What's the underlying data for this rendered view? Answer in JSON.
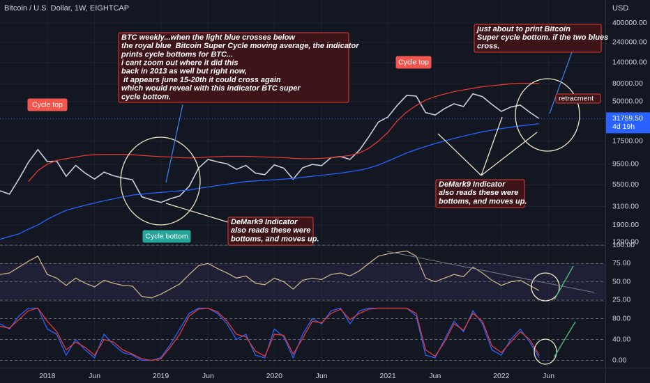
{
  "chart_data": [
    {
      "type": "line",
      "title": "Bitcoin / U.S. Dollar, 1W, EIGHTCAP",
      "y_axis_label": "USD",
      "log_scale": true,
      "grid": true,
      "x": [
        "2017-08",
        "2017-09",
        "2017-10",
        "2017-11",
        "2017-12",
        "2018-01",
        "2018-02",
        "2018-03",
        "2018-04",
        "2018-05",
        "2018-06",
        "2018-07",
        "2018-08",
        "2018-09",
        "2018-10",
        "2018-11",
        "2018-12",
        "2019-01",
        "2019-02",
        "2019-03",
        "2019-04",
        "2019-05",
        "2019-06",
        "2019-07",
        "2019-08",
        "2019-09",
        "2019-10",
        "2019-11",
        "2019-12",
        "2020-01",
        "2020-02",
        "2020-03",
        "2020-04",
        "2020-05",
        "2020-06",
        "2020-07",
        "2020-08",
        "2020-09",
        "2020-10",
        "2020-11",
        "2020-12",
        "2021-01",
        "2021-02",
        "2021-03",
        "2021-04",
        "2021-05",
        "2021-06",
        "2021-07",
        "2021-08",
        "2021-09",
        "2021-10",
        "2021-11",
        "2021-12",
        "2022-01",
        "2022-02",
        "2022-03",
        "2022-04",
        "2022-05"
      ],
      "series": [
        {
          "color": "#c9d1dd",
          "values": [
            4700,
            4300,
            6400,
            10000,
            14000,
            10200,
            10300,
            6900,
            9200,
            7500,
            6400,
            7700,
            7000,
            6600,
            6300,
            4000,
            3700,
            3450,
            3800,
            4100,
            5300,
            8600,
            10800,
            10100,
            9600,
            8300,
            9200,
            7500,
            7200,
            9350,
            8550,
            6400,
            8650,
            9450,
            9150,
            11300,
            11650,
            10800,
            13800,
            19700,
            29000,
            33100,
            45200,
            58800,
            57700,
            37300,
            35000,
            41500,
            47100,
            43800,
            61300,
            57000,
            46300,
            38500,
            43200,
            45500,
            37700,
            31760
          ]
        },
        {
          "color": "#e53935",
          "values": [
            null,
            null,
            null,
            6000,
            8000,
            9500,
            10500,
            11000,
            11500,
            12000,
            12200,
            12300,
            12300,
            12300,
            12200,
            12000,
            11800,
            11600,
            11500,
            11300,
            11200,
            11300,
            11500,
            11600,
            11700,
            11700,
            11700,
            11600,
            11500,
            11400,
            11300,
            11100,
            11000,
            11000,
            11100,
            11300,
            11600,
            12000,
            12800,
            14500,
            17500,
            22000,
            30000,
            38000,
            45000,
            52000,
            57000,
            61000,
            65000,
            68000,
            71000,
            74000,
            76000,
            78000,
            80000,
            81000,
            81000,
            80000
          ]
        },
        {
          "color": "#2962ff",
          "values": [
            1300,
            1400,
            1500,
            1700,
            1900,
            2200,
            2500,
            2800,
            3000,
            3200,
            3400,
            3600,
            3800,
            4000,
            4200,
            4300,
            4400,
            4500,
            4600,
            4700,
            4800,
            5000,
            5200,
            5400,
            5600,
            5800,
            6000,
            6100,
            6200,
            6300,
            6400,
            6500,
            6700,
            6900,
            7100,
            7300,
            7500,
            7800,
            8100,
            8600,
            9300,
            10300,
            11500,
            12800,
            14000,
            15200,
            16400,
            17600,
            18800,
            20000,
            21200,
            22400,
            23400,
            24400,
            25300,
            26200,
            27000,
            27800
          ]
        }
      ],
      "xlim": [
        "2017-08",
        "2022-12"
      ],
      "xticks": [
        {
          "value": "2018-01",
          "label": "2018"
        },
        {
          "value": "2018-06",
          "label": "Jun"
        },
        {
          "value": "2019-01",
          "label": "2019"
        },
        {
          "value": "2019-06",
          "label": "Jun"
        },
        {
          "value": "2020-01",
          "label": "2020"
        },
        {
          "value": "2020-06",
          "label": "Jun"
        },
        {
          "value": "2021-01",
          "label": "2021"
        },
        {
          "value": "2021-06",
          "label": "Jun"
        },
        {
          "value": "2022-01",
          "label": "2022"
        },
        {
          "value": "2022-06",
          "label": "Jun"
        }
      ],
      "ylim": [
        1114,
        736000
      ],
      "yticks": [
        {
          "value": 1200,
          "label": "1200.00"
        },
        {
          "value": 1900,
          "label": "1900.00"
        },
        {
          "value": 3100,
          "label": "3100.00"
        },
        {
          "value": 5500,
          "label": "5500.00"
        },
        {
          "value": 9500,
          "label": "9500.00"
        },
        {
          "value": 17500,
          "label": "17500.00"
        },
        {
          "value": 50000,
          "label": "50000.00"
        },
        {
          "value": 80000,
          "label": "80000.00"
        },
        {
          "value": 140000,
          "label": "140000.00"
        },
        {
          "value": 240000,
          "label": "240000.00"
        },
        {
          "value": 400000,
          "label": "400000.00"
        }
      ],
      "last_price": {
        "value": 31759.5,
        "label": "31759.50"
      },
      "countdown": "4d 19h",
      "annotations": [
        {
          "text": "Cycle top"
        },
        {
          "text": "Cycle top"
        },
        {
          "text": "Cycle bottom"
        },
        {
          "lines": [
            "BTC weekly...when the light blue crosses below",
            "the royal blue  Bitcoin Super Cycle moving average, the indicator",
            "prints cycle bottoms for BTC...",
            "i cant zoom out where it did this",
            "back in 2013 as well but right now,",
            " it appears june 15-20th it could cross again",
            "which would reveal with this indicator BTC super",
            "cycle bottom."
          ]
        },
        {
          "lines": [
            "DeMark9 Indicator",
            "also reads these were",
            "bottoms, and moves up."
          ]
        },
        {
          "lines": [
            "DeMark9 Indicator",
            "also reads these were",
            "bottoms, and moves up."
          ]
        },
        {
          "lines": [
            "just about to print Bitcoin",
            "Super cycle bottom. if the two blues",
            "cross."
          ]
        },
        {
          "text": "retracment"
        }
      ]
    },
    {
      "type": "line",
      "x": [
        "2017-08",
        "2017-09",
        "2017-10",
        "2017-11",
        "2017-12",
        "2018-01",
        "2018-02",
        "2018-03",
        "2018-04",
        "2018-05",
        "2018-06",
        "2018-07",
        "2018-08",
        "2018-09",
        "2018-10",
        "2018-11",
        "2018-12",
        "2019-01",
        "2019-02",
        "2019-03",
        "2019-04",
        "2019-05",
        "2019-06",
        "2019-07",
        "2019-08",
        "2019-09",
        "2019-10",
        "2019-11",
        "2019-12",
        "2020-01",
        "2020-02",
        "2020-03",
        "2020-04",
        "2020-05",
        "2020-06",
        "2020-07",
        "2020-08",
        "2020-09",
        "2020-10",
        "2020-11",
        "2020-12",
        "2021-01",
        "2021-02",
        "2021-03",
        "2021-04",
        "2021-05",
        "2021-06",
        "2021-07",
        "2021-08",
        "2021-09",
        "2021-10",
        "2021-11",
        "2021-12",
        "2022-01",
        "2022-02",
        "2022-03",
        "2022-04",
        "2022-05"
      ],
      "series": [
        {
          "color": "#c9b28a",
          "values": [
            60,
            62,
            70,
            78,
            85,
            60,
            55,
            45,
            55,
            48,
            43,
            52,
            48,
            45,
            44,
            30,
            28,
            33,
            40,
            47,
            60,
            72,
            75,
            68,
            62,
            55,
            58,
            48,
            46,
            55,
            50,
            40,
            52,
            55,
            53,
            60,
            62,
            58,
            65,
            75,
            85,
            88,
            90,
            92,
            85,
            55,
            50,
            55,
            60,
            57,
            70,
            62,
            52,
            45,
            50,
            52,
            45,
            38
          ]
        }
      ],
      "ylim": [
        24,
        100
      ],
      "yticks": [
        {
          "value": 25,
          "label": "25.00"
        },
        {
          "value": 50,
          "label": "50.00"
        },
        {
          "value": 75,
          "label": "75.00"
        },
        {
          "value": 100,
          "label": "100.00"
        }
      ]
    },
    {
      "type": "line",
      "x": [
        "2017-08",
        "2017-09",
        "2017-10",
        "2017-11",
        "2017-12",
        "2018-01",
        "2018-02",
        "2018-03",
        "2018-04",
        "2018-05",
        "2018-06",
        "2018-07",
        "2018-08",
        "2018-09",
        "2018-10",
        "2018-11",
        "2018-12",
        "2019-01",
        "2019-02",
        "2019-03",
        "2019-04",
        "2019-05",
        "2019-06",
        "2019-07",
        "2019-08",
        "2019-09",
        "2019-10",
        "2019-11",
        "2019-12",
        "2020-01",
        "2020-02",
        "2020-03",
        "2020-04",
        "2020-05",
        "2020-06",
        "2020-07",
        "2020-08",
        "2020-09",
        "2020-10",
        "2020-11",
        "2020-12",
        "2021-01",
        "2021-02",
        "2021-03",
        "2021-04",
        "2021-05",
        "2021-06",
        "2021-07",
        "2021-08",
        "2021-09",
        "2021-10",
        "2021-11",
        "2021-12",
        "2022-01",
        "2022-02",
        "2022-03",
        "2022-04",
        "2022-05"
      ],
      "series": [
        {
          "color": "#2962ff",
          "values": [
            70,
            60,
            85,
            100,
            100,
            60,
            50,
            10,
            40,
            20,
            5,
            50,
            30,
            15,
            10,
            0,
            0,
            5,
            30,
            60,
            90,
            100,
            100,
            90,
            70,
            40,
            50,
            10,
            5,
            60,
            45,
            5,
            50,
            80,
            70,
            95,
            100,
            70,
            95,
            100,
            100,
            100,
            100,
            100,
            85,
            10,
            5,
            40,
            75,
            55,
            95,
            70,
            20,
            10,
            40,
            60,
            35,
            5
          ]
        },
        {
          "color": "#e53935",
          "values": [
            65,
            62,
            78,
            95,
            100,
            75,
            55,
            20,
            35,
            25,
            10,
            40,
            35,
            20,
            12,
            3,
            0,
            3,
            25,
            50,
            85,
            98,
            100,
            93,
            75,
            50,
            45,
            18,
            8,
            50,
            48,
            12,
            42,
            75,
            72,
            90,
            98,
            78,
            90,
            98,
            100,
            100,
            100,
            100,
            90,
            20,
            8,
            35,
            70,
            58,
            90,
            75,
            28,
            15,
            35,
            55,
            40,
            10
          ]
        }
      ],
      "ylim": [
        -14,
        114
      ],
      "yticks": [
        {
          "value": 0,
          "label": "0.00"
        },
        {
          "value": 40,
          "label": "40.00"
        },
        {
          "value": 80,
          "label": "80.00"
        }
      ]
    }
  ]
}
